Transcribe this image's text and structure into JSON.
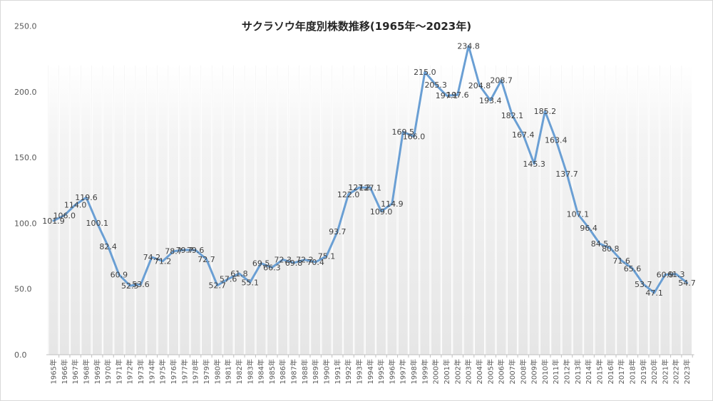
{
  "chart_data": {
    "type": "line",
    "title": "サクラソウ年度別株数推移(1965年～2023年)",
    "xlabel": "",
    "ylabel": "",
    "ylim": [
      0,
      250
    ],
    "yticks": [
      "0.0",
      "50.0",
      "100.0",
      "150.0",
      "200.0",
      "250.0"
    ],
    "grid": "vertical gradient bands",
    "legend": "none",
    "line_color": "#6a9fd4",
    "categories": [
      "1965年",
      "1966年",
      "1967年",
      "1968年",
      "1969年",
      "1970年",
      "1971年",
      "1972年",
      "1973年",
      "1974年",
      "1975年",
      "1976年",
      "1977年",
      "1978年",
      "1979年",
      "1980年",
      "1981年",
      "1982年",
      "1983年",
      "1984年",
      "1985年",
      "1986年",
      "1987年",
      "1988年",
      "1989年",
      "1990年",
      "1991年",
      "1992年",
      "1993年",
      "1994年",
      "1995年",
      "1996年",
      "1997年",
      "1998年",
      "1999年",
      "2000年",
      "2001年",
      "2002年",
      "2003年",
      "2004年",
      "2005年",
      "2006年",
      "2007年",
      "2008年",
      "2009年",
      "2010年",
      "2011年",
      "2012年",
      "2013年",
      "2014年",
      "2015年",
      "2016年",
      "2017年",
      "2018年",
      "2019年",
      "2020年",
      "2021年",
      "2022年",
      "2023年"
    ],
    "values": [
      101.9,
      106.0,
      114.0,
      119.6,
      100.1,
      82.4,
      60.9,
      52.5,
      53.6,
      74.2,
      71.2,
      78.7,
      79.7,
      79.6,
      72.7,
      52.7,
      57.6,
      61.8,
      55.1,
      69.5,
      66.3,
      72.3,
      69.8,
      72.2,
      70.4,
      75.1,
      93.7,
      122.0,
      127.2,
      127.1,
      109.0,
      114.9,
      169.5,
      166.0,
      215.0,
      205.3,
      197.1,
      197.6,
      234.8,
      204.8,
      193.4,
      208.7,
      182.1,
      167.4,
      145.3,
      185.2,
      163.4,
      137.7,
      107.1,
      96.4,
      84.5,
      80.8,
      71.6,
      65.6,
      53.7,
      47.1,
      60.9,
      61.3,
      54.7
    ],
    "data_labels": [
      "101.9",
      "106.0",
      "114.0",
      "119.6",
      "100.1",
      "82.4",
      "60.9",
      "52.5",
      "53.6",
      "74.2",
      "71.2",
      "78.7",
      "79.7",
      "79.6",
      "72.7",
      "52.7",
      "57.6",
      "61.8",
      "55.1",
      "69.5",
      "66.3",
      "72.3",
      "69.8",
      "72.2",
      "70.4",
      "75.1",
      "93.7",
      "122.0",
      "127.2",
      "127.1",
      "109.0",
      "114.9",
      "169.5",
      "166.0",
      "215.0",
      "205.3",
      "197.1",
      "197.6",
      "234.8",
      "204.8",
      "193.4",
      "208.7",
      "182.1",
      "167.4",
      "145.3",
      "185.2",
      "163.4",
      "137.7",
      "107.1",
      "96.4",
      "84.5",
      "80.8",
      "71.6",
      "65.6",
      "53.7",
      "47.1",
      "60.9",
      "61.3",
      "54.7"
    ]
  }
}
